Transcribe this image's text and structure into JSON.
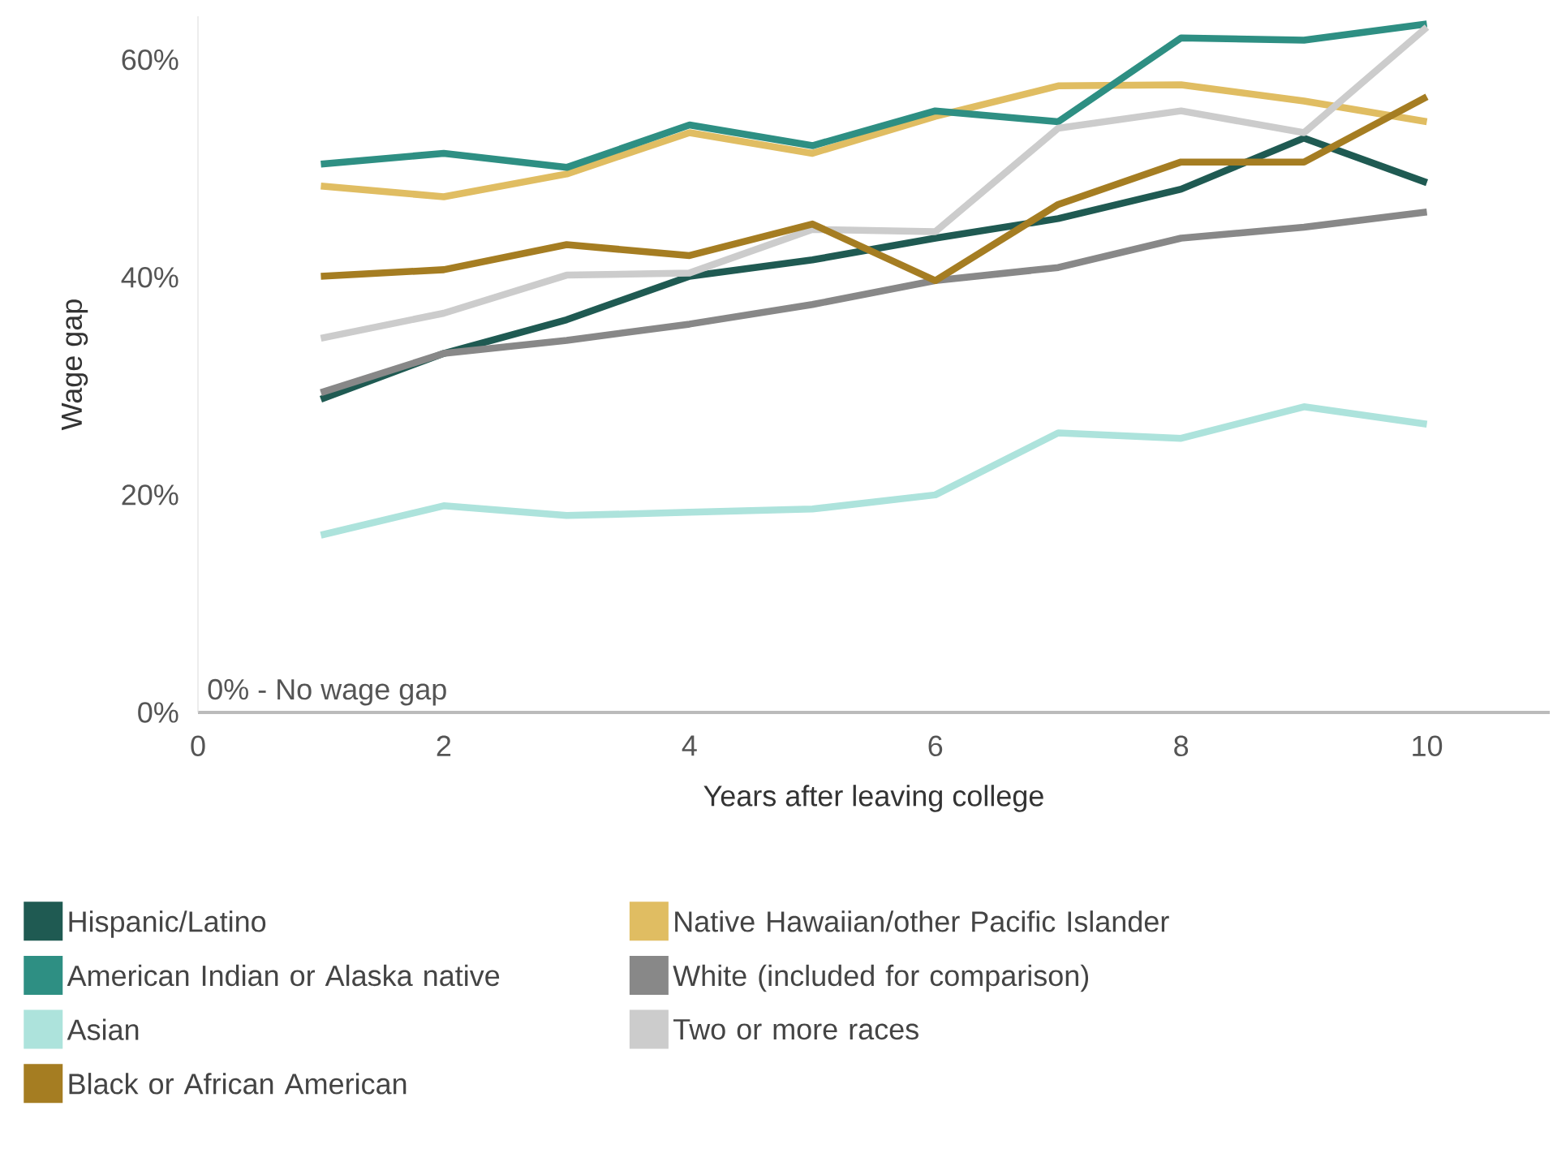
{
  "chart_data": {
    "type": "line",
    "xlabel": "Years after leaving college",
    "ylabel": "Wage gap",
    "x": [
      1,
      2,
      3,
      4,
      5,
      6,
      7,
      8,
      9,
      10
    ],
    "series": [
      {
        "name": "Hispanic/Latino",
        "color": "#1f5a52",
        "values": [
          28.8,
          33.0,
          36.1,
          40.1,
          41.6,
          43.6,
          45.4,
          48.1,
          52.8,
          48.7
        ]
      },
      {
        "name": "Native Hawaiian/other Pacific Islander",
        "color": "#e0bd62",
        "values": [
          48.4,
          47.4,
          49.5,
          53.3,
          51.4,
          54.8,
          57.6,
          57.7,
          56.2,
          54.3
        ]
      },
      {
        "name": "American Indian or Alaska native",
        "color": "#2e8f83",
        "values": [
          50.4,
          51.4,
          50.1,
          54.0,
          52.1,
          55.3,
          54.3,
          62.0,
          61.8,
          63.3
        ]
      },
      {
        "name": "White (included for comparison)",
        "color": "#888888",
        "values": [
          29.4,
          33.0,
          34.2,
          35.7,
          37.5,
          39.7,
          40.9,
          43.6,
          44.6,
          46.0
        ]
      },
      {
        "name": "Asian",
        "color": "#ade3dc",
        "values": [
          16.3,
          19.0,
          18.1,
          18.4,
          18.7,
          20.0,
          25.7,
          25.2,
          28.1,
          26.5
        ]
      },
      {
        "name": "Two or more races",
        "color": "#cccccc",
        "values": [
          34.4,
          36.7,
          40.2,
          40.4,
          44.4,
          44.2,
          53.7,
          55.3,
          53.3,
          63.0
        ]
      },
      {
        "name": "Black or African American",
        "color": "#a57d22",
        "values": [
          40.1,
          40.7,
          43.0,
          42.0,
          44.9,
          39.7,
          46.7,
          50.6,
          50.6,
          56.6
        ]
      }
    ],
    "xlim": [
      0,
      11
    ],
    "xticks": [
      0,
      2,
      4,
      6,
      8,
      10
    ],
    "ylim": [
      0,
      64
    ],
    "yticks": [
      {
        "value": 0,
        "label": "0%"
      },
      {
        "value": 20,
        "label": "20%"
      },
      {
        "value": 40,
        "label": "40%"
      },
      {
        "value": 60,
        "label": "60%"
      }
    ],
    "annotations": [
      "0% - No wage gap"
    ],
    "legend": "bottom",
    "line_style": "solid"
  }
}
